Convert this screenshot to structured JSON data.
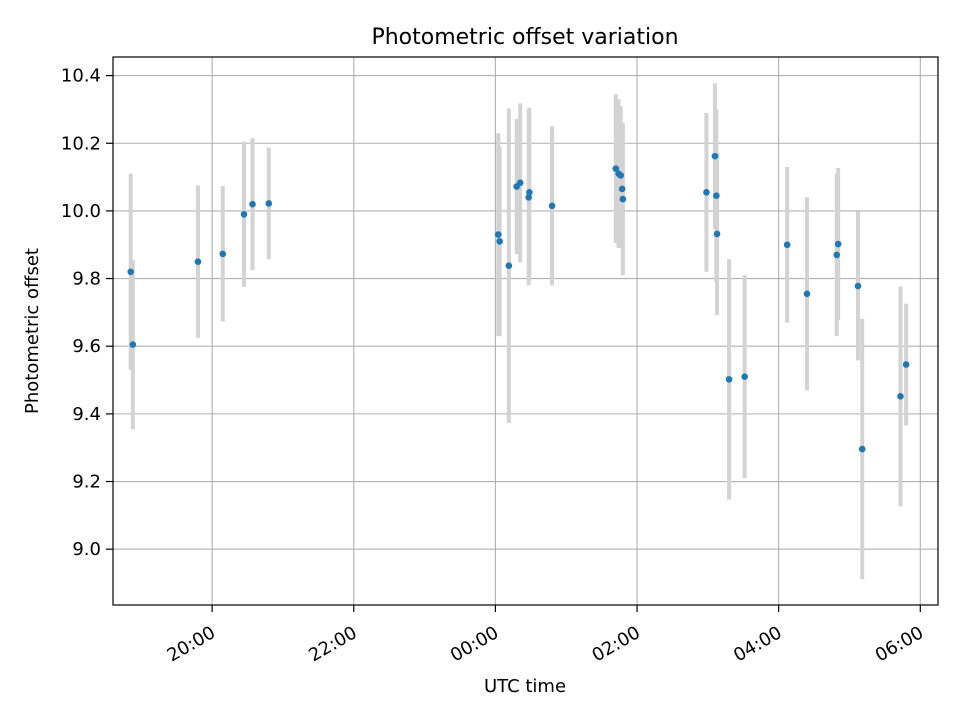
{
  "chart_data": {
    "type": "scatter",
    "title": "Photometric offset variation",
    "xlabel": "UTC time",
    "ylabel": "Photometric offset",
    "x_unit": "hours since 00:00 UTC",
    "xlim": [
      -5.4,
      6.25
    ],
    "ylim": [
      8.835,
      10.455
    ],
    "grid": true,
    "x_ticks": [
      {
        "value": -4,
        "label": "20:00"
      },
      {
        "value": -2,
        "label": "22:00"
      },
      {
        "value": 0,
        "label": "00:00"
      },
      {
        "value": 2,
        "label": "02:00"
      },
      {
        "value": 4,
        "label": "04:00"
      },
      {
        "value": 6,
        "label": "06:00"
      }
    ],
    "y_ticks": [
      {
        "value": 9.0,
        "label": "9.0"
      },
      {
        "value": 9.2,
        "label": "9.2"
      },
      {
        "value": 9.4,
        "label": "9.4"
      },
      {
        "value": 9.6,
        "label": "9.6"
      },
      {
        "value": 9.8,
        "label": "9.8"
      },
      {
        "value": 10.0,
        "label": "10.0"
      },
      {
        "value": 10.2,
        "label": "10.2"
      },
      {
        "value": 10.4,
        "label": "10.4"
      }
    ],
    "point_color": "#1f77b4",
    "errorbar_color": "#d3d3d3",
    "points": [
      {
        "x": -5.15,
        "y": 9.82,
        "err": 0.29
      },
      {
        "x": -5.12,
        "y": 9.605,
        "err": 0.25
      },
      {
        "x": -4.2,
        "y": 9.85,
        "err": 0.225
      },
      {
        "x": -3.85,
        "y": 9.873,
        "err": 0.2
      },
      {
        "x": -3.55,
        "y": 9.99,
        "err": 0.215
      },
      {
        "x": -3.43,
        "y": 10.02,
        "err": 0.195
      },
      {
        "x": -3.2,
        "y": 10.022,
        "err": 0.165
      },
      {
        "x": 0.04,
        "y": 9.93,
        "err": 0.3
      },
      {
        "x": 0.06,
        "y": 9.91,
        "err": 0.28
      },
      {
        "x": 0.19,
        "y": 9.838,
        "err": 0.465
      },
      {
        "x": 0.3,
        "y": 10.072,
        "err": 0.2
      },
      {
        "x": 0.35,
        "y": 10.083,
        "err": 0.235
      },
      {
        "x": 0.47,
        "y": 10.04,
        "err": 0.26
      },
      {
        "x": 0.48,
        "y": 10.055,
        "err": 0.25
      },
      {
        "x": 0.8,
        "y": 10.015,
        "err": 0.235
      },
      {
        "x": 1.7,
        "y": 10.125,
        "err": 0.22
      },
      {
        "x": 1.74,
        "y": 10.11,
        "err": 0.22
      },
      {
        "x": 1.77,
        "y": 10.105,
        "err": 0.205
      },
      {
        "x": 1.79,
        "y": 10.065,
        "err": 0.175
      },
      {
        "x": 1.8,
        "y": 10.035,
        "err": 0.225
      },
      {
        "x": 2.98,
        "y": 10.055,
        "err": 0.235
      },
      {
        "x": 3.1,
        "y": 10.162,
        "err": 0.215
      },
      {
        "x": 3.12,
        "y": 10.045,
        "err": 0.255
      },
      {
        "x": 3.13,
        "y": 9.932,
        "err": 0.24
      },
      {
        "x": 3.3,
        "y": 9.502,
        "err": 0.355
      },
      {
        "x": 3.52,
        "y": 9.51,
        "err": 0.3
      },
      {
        "x": 4.12,
        "y": 9.9,
        "err": 0.23
      },
      {
        "x": 4.4,
        "y": 9.755,
        "err": 0.285
      },
      {
        "x": 4.82,
        "y": 9.87,
        "err": 0.24
      },
      {
        "x": 4.84,
        "y": 9.902,
        "err": 0.225
      },
      {
        "x": 5.12,
        "y": 9.778,
        "err": 0.22
      },
      {
        "x": 5.18,
        "y": 9.296,
        "err": 0.385
      },
      {
        "x": 5.72,
        "y": 9.452,
        "err": 0.325
      },
      {
        "x": 5.8,
        "y": 9.546,
        "err": 0.18
      }
    ]
  }
}
